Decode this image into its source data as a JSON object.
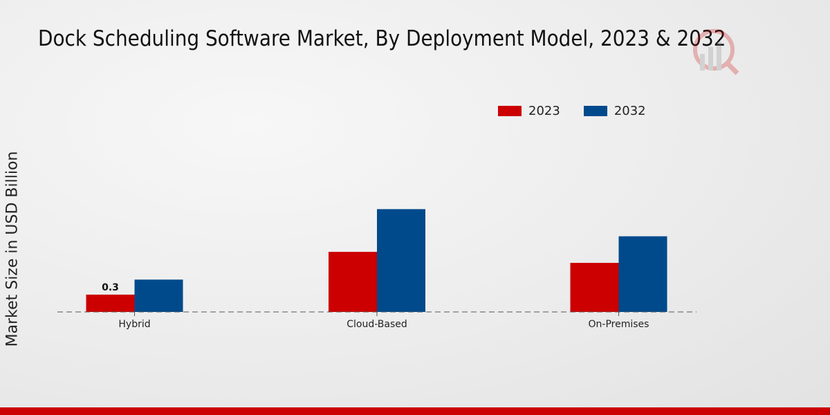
{
  "chart_data": {
    "type": "bar",
    "title": "Dock Scheduling Software Market, By Deployment Model, 2023 & 2032",
    "xlabel": "",
    "ylabel": "Market Size in USD Billion",
    "categories": [
      "Hybrid",
      "Cloud-Based",
      "On-Premises"
    ],
    "series": [
      {
        "name": "2023",
        "color": "#cc0000",
        "values": [
          0.3,
          1.04,
          0.85
        ],
        "labels": [
          "0.3",
          null,
          null
        ]
      },
      {
        "name": "2032",
        "color": "#004a8c",
        "values": [
          0.56,
          1.78,
          1.31
        ],
        "labels": [
          null,
          null,
          null
        ]
      }
    ],
    "ylim": [
      0,
      2.0
    ],
    "grid": false,
    "legend_position": "top-right"
  }
}
